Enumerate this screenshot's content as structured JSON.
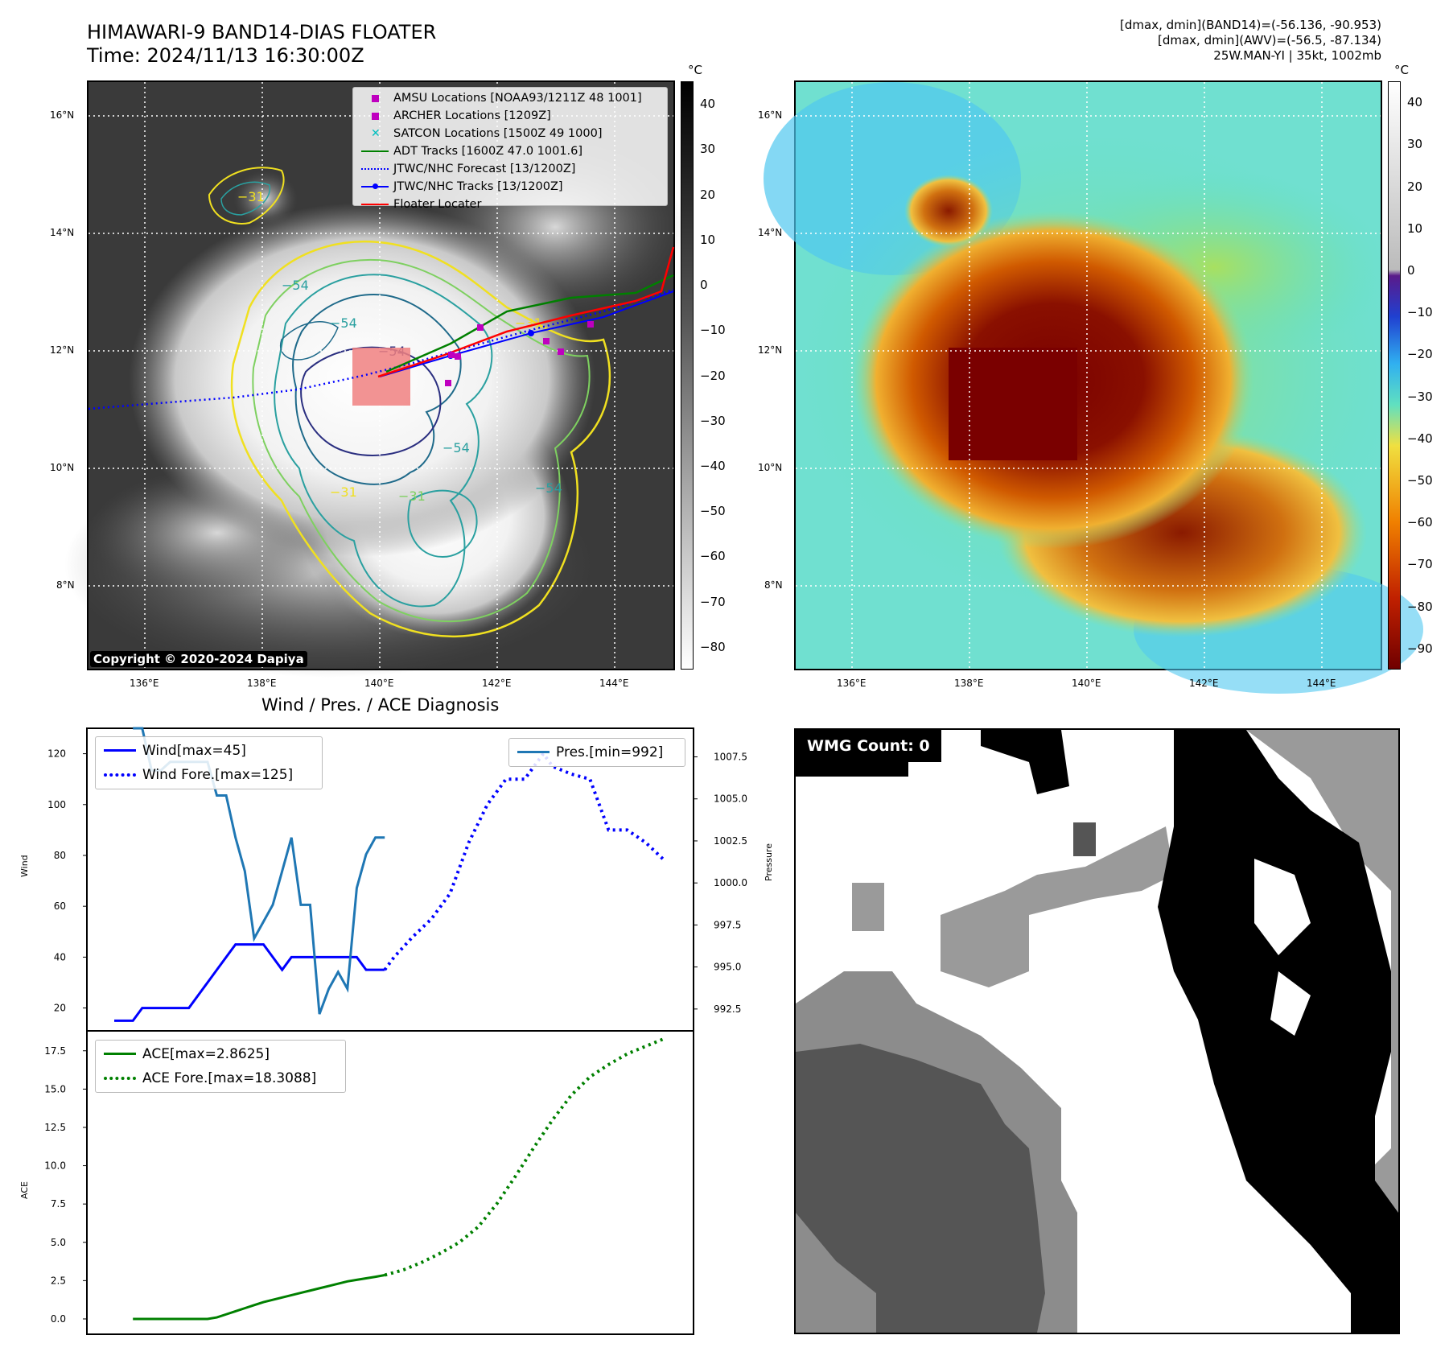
{
  "header": {
    "title_line1": "HIMAWARI-9 BAND14-DIAS FLOATER",
    "title_line2": "Time: 2024/11/13 16:30:00Z",
    "right_line1": "[dmax, dmin](BAND14)=(-56.136, -90.953)",
    "right_line2": "[dmax, dmin](AWV)=(-56.5, -87.134)",
    "right_line3": "25W.MAN-YI | 35kt, 1002mb"
  },
  "map_axes": {
    "lat_labels": [
      "16°N",
      "14°N",
      "12°N",
      "10°N",
      "8°N"
    ],
    "lon_labels": [
      "136°E",
      "138°E",
      "140°E",
      "142°E",
      "144°E"
    ]
  },
  "ir_panel": {
    "colorbar_unit": "°C",
    "colorbar_ticks": [
      "40",
      "30",
      "20",
      "10",
      "0",
      "−10",
      "−20",
      "−30",
      "−40",
      "−50",
      "−60",
      "−70",
      "−80"
    ],
    "contour_labels": [
      "−31",
      "−54",
      "−54",
      "−31",
      "−54",
      "−31",
      "−54",
      "−54",
      "−31"
    ],
    "legend": [
      {
        "label": "AMSU Locations [NOAA93/1211Z 48 1001]",
        "color": "#bf00bf",
        "marker": "square"
      },
      {
        "label": "ARCHER Locations [1209Z]",
        "color": "#bf00bf",
        "marker": "square"
      },
      {
        "label": "SATCON Locations [1500Z 49 1000]",
        "color": "#00bfbf",
        "marker": "x"
      },
      {
        "label": "ADT Tracks [1600Z 47.0 1001.6]",
        "color": "#008000",
        "marker": "line"
      },
      {
        "label": "JTWC/NHC Forecast [13/1200Z]",
        "color": "#0000ff",
        "marker": "dotted"
      },
      {
        "label": "JTWC/NHC Tracks [13/1200Z]",
        "color": "#0000ff",
        "marker": "line-dot"
      },
      {
        "label": "Floater Locater",
        "color": "#ff0000",
        "marker": "line"
      }
    ],
    "copyright": "Copyright © 2020-2024 Dapiya"
  },
  "awv_panel": {
    "colorbar_unit": "°C",
    "colorbar_ticks": [
      "40",
      "30",
      "20",
      "10",
      "0",
      "−10",
      "−20",
      "−30",
      "−40",
      "−50",
      "−60",
      "−70",
      "−80",
      "−90"
    ]
  },
  "wmg_panel": {
    "label": "WMG Count: 0"
  },
  "chart_data": [
    {
      "type": "line",
      "title": "Wind / Pres. / ACE Diagnosis",
      "ylabel": "Wind",
      "ylabel_right": "Pressure",
      "ylim": [
        11,
        130
      ],
      "ylim_right": [
        991.2,
        1009.2
      ],
      "yticks": [
        "20",
        "40",
        "60",
        "80",
        "100",
        "120"
      ],
      "yticks_right": [
        "992.5",
        "995.0",
        "997.5",
        "1000.0",
        "1002.5",
        "1005.0",
        "1007.5"
      ],
      "legend_left": [
        "Wind[max=45]",
        "Wind Fore.[max=125]"
      ],
      "legend_right": [
        "Pres.[min=992]"
      ],
      "series": [
        {
          "name": "Wind[max=45]",
          "color": "#0000ff",
          "style": "solid",
          "x": [
            0,
            1,
            2,
            3,
            4,
            5,
            6,
            7,
            8,
            9,
            10,
            11,
            12,
            13,
            14,
            15,
            16,
            17,
            18,
            19,
            20,
            21,
            22,
            23,
            24,
            25,
            26,
            27,
            28,
            29
          ],
          "values": [
            15,
            15,
            15,
            20,
            20,
            20,
            20,
            20,
            20,
            25,
            30,
            35,
            40,
            45,
            45,
            45,
            45,
            40,
            35,
            40,
            40,
            40,
            40,
            40,
            40,
            40,
            40,
            35,
            35,
            35
          ]
        },
        {
          "name": "Wind Fore.[max=125]",
          "color": "#0000ff",
          "style": "dotted",
          "x": [
            29,
            30,
            32,
            34,
            36,
            37,
            38,
            40,
            42,
            44,
            45,
            46,
            47,
            49,
            51,
            52,
            53,
            55,
            57,
            59
          ],
          "values": [
            35,
            40,
            48,
            55,
            65,
            75,
            85,
            100,
            110,
            110,
            115,
            120,
            115,
            112,
            110,
            100,
            90,
            90,
            85,
            78
          ]
        },
        {
          "name": "Pres.[min=992]",
          "color": "#1f77b4",
          "style": "solid",
          "axis": "right",
          "x": [
            2,
            3,
            4,
            5,
            6,
            7,
            8,
            9,
            10,
            11,
            12,
            13,
            14,
            15,
            16,
            17,
            18,
            19,
            20,
            21,
            22,
            23,
            24,
            25,
            26,
            27,
            28,
            29
          ],
          "values": [
            1009.2,
            1009.2,
            1006.7,
            1006.7,
            1007.2,
            1007.2,
            1007.2,
            1007.2,
            1007.2,
            1005.2,
            1005.2,
            1002.7,
            1000.7,
            996.7,
            997.7,
            998.7,
            1000.7,
            1002.7,
            998.7,
            998.7,
            992.2,
            993.7,
            994.7,
            993.7,
            999.7,
            1001.7,
            1002.7,
            1002.7
          ]
        }
      ]
    },
    {
      "type": "line",
      "ylabel": "ACE",
      "ylim": [
        -1,
        18.8
      ],
      "yticks": [
        "0.0",
        "2.5",
        "5.0",
        "7.5",
        "10.0",
        "12.5",
        "15.0",
        "17.5"
      ],
      "legend": [
        "ACE[max=2.8625]",
        "ACE Fore.[max=18.3088]"
      ],
      "series": [
        {
          "name": "ACE[max=2.8625]",
          "color": "#008000",
          "style": "solid",
          "x": [
            2,
            10,
            11,
            12,
            13,
            14,
            15,
            16,
            17,
            18,
            19,
            20,
            21,
            22,
            23,
            24,
            25,
            26,
            27,
            28,
            29
          ],
          "values": [
            0,
            0,
            0.1,
            0.3,
            0.5,
            0.7,
            0.9,
            1.1,
            1.25,
            1.4,
            1.55,
            1.7,
            1.85,
            2.0,
            2.15,
            2.3,
            2.45,
            2.55,
            2.65,
            2.75,
            2.86
          ]
        },
        {
          "name": "ACE Fore.[max=18.3088]",
          "color": "#008000",
          "style": "dotted",
          "x": [
            29,
            31,
            33,
            35,
            37,
            39,
            41,
            43,
            45,
            47,
            49,
            51,
            53,
            55,
            57,
            59
          ],
          "values": [
            2.86,
            3.2,
            3.7,
            4.3,
            5.0,
            6.0,
            7.5,
            9.3,
            11.2,
            13.0,
            14.6,
            15.8,
            16.6,
            17.3,
            17.8,
            18.3
          ]
        }
      ]
    }
  ]
}
